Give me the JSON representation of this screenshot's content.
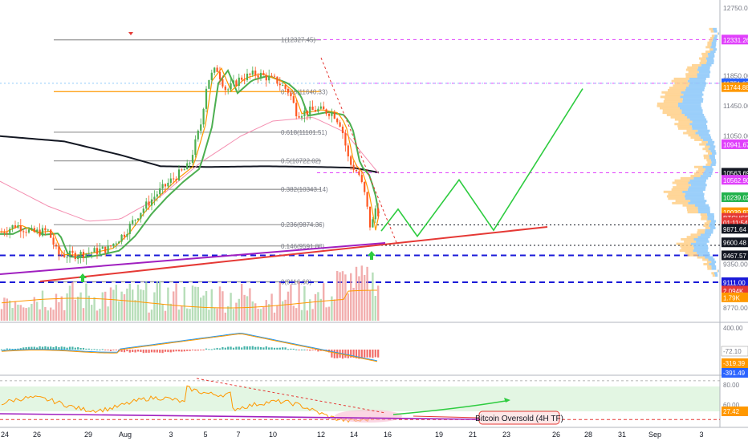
{
  "chart_data": {
    "type": "candlestick",
    "symbol_label": "BTCUSD",
    "price_axis": {
      "range": [
        8600,
        12780
      ],
      "ticks": [
        "12750.00",
        "12331.26",
        "11850.00",
        "11751.07",
        "11744.88",
        "11450.00",
        "11050.00",
        "10941.67",
        "10563.69",
        "10562.90",
        "10239.02",
        "10039.97",
        "9964.96",
        "01:11:54",
        "9871.64",
        "9600.48",
        "9467.57",
        "9350.00",
        "9111.00",
        "2.094K",
        "1.79K",
        "8770.00"
      ]
    },
    "time_axis": {
      "labels": [
        "24",
        "26",
        "29",
        "Aug",
        "3",
        "5",
        "7",
        "10",
        "12",
        "14",
        "16",
        "19",
        "21",
        "23",
        "26",
        "28",
        "31",
        "Sep",
        "3"
      ]
    },
    "colors": {
      "up": "#26a69a",
      "down": "#ef5350",
      "wick_up": "#4caf50",
      "wick_down": "#ff5722",
      "ma_fast": "#ff9800",
      "ma_green": "#4caf50",
      "ma_pink": "#f48fb1",
      "ma_black": "#131722",
      "fib": "#9e9e9e",
      "fib_orange": "#ff9800",
      "projection": "#2ecc40",
      "trend_red": "#e53935",
      "trend_purple": "#a020c0",
      "level_blue": "#1a1ad8",
      "level_magenta": "#e040fb",
      "price_badge_magenta": "#e040fb",
      "price_badge_green": "#22b24c",
      "price_badge_black": "#131722",
      "price_badge_blue": "#2962ff",
      "price_badge_orange": "#ff9800",
      "price_badge_red": "#e53935"
    },
    "fib_levels": [
      {
        "label": "1(12327.45)",
        "price": 12327.45
      },
      {
        "label": "0.786(11640.33)",
        "price": 11640.33
      },
      {
        "label": "0.618(11101.51)",
        "price": 11101.51
      },
      {
        "label": "0.5(10722.02)",
        "price": 10722.02
      },
      {
        "label": "0.382(10343.14)",
        "price": 10343.14
      },
      {
        "label": "0.236(9874.36)",
        "price": 9874.36
      },
      {
        "label": "0.146(9591.80)",
        "price": 9591.8
      },
      {
        "label": "0(9116.60)",
        "price": 9116.6
      }
    ],
    "horizontal_levels": [
      {
        "price": 12331.26,
        "style": "magenta-dash"
      },
      {
        "price": 11751.07,
        "style": "magenta-dash"
      },
      {
        "price": 10563.69,
        "style": "magenta-dash"
      },
      {
        "price": 9871.64,
        "style": "black-dash"
      },
      {
        "price": 9600.48,
        "style": "black-dash"
      },
      {
        "price": 9467.57,
        "style": "blue-dash"
      },
      {
        "price": 9111.0,
        "style": "blue-dash"
      }
    ],
    "price_badges": [
      {
        "text": "12331.26",
        "price": 12331.26,
        "color": "#e040fb"
      },
      {
        "text": "11751.07",
        "price": 11751.07,
        "color": "#2962ff"
      },
      {
        "text": "11744.88",
        "price": 11700,
        "color": "#ff9800"
      },
      {
        "text": "10941.67",
        "price": 10941.67,
        "color": "#e040fb"
      },
      {
        "text": "10563.69",
        "price": 10563.69,
        "color": "#131722"
      },
      {
        "text": "10562.90",
        "price": 10470,
        "color": "#e040fb"
      },
      {
        "text": "10239.02",
        "price": 10239.02,
        "color": "#22b24c"
      },
      {
        "text": "10039.97",
        "price": 10039.97,
        "color": "#ff9800"
      },
      {
        "text": "BTCUSD",
        "price": 9964.96,
        "color": "#e53935"
      },
      {
        "text": "01:11:54",
        "price": 9905,
        "color": "#e53935"
      },
      {
        "text": "9871.64",
        "price": 9820,
        "color": "#131722"
      },
      {
        "text": "9600.48",
        "price": 9640,
        "color": "#131722"
      },
      {
        "text": "9467.57",
        "price": 9467.57,
        "color": "#131722"
      },
      {
        "text": "9111.00",
        "price": 9111.0,
        "color": "#1a1ad8"
      },
      {
        "text": "2.094K",
        "price": 9000,
        "color": "#e53935"
      },
      {
        "text": "1.79K",
        "price": 8910,
        "color": "#ff9800"
      }
    ],
    "projection_path_prices": [
      9790,
      10080,
      9720,
      10470,
      9800,
      11680
    ],
    "macd_panel": {
      "ticks": [
        "400.00",
        "0.00",
        "-72.10",
        "-319.39",
        "-391.49"
      ]
    },
    "rsi_panel": {
      "ticks": [
        "80.00",
        "60.00",
        "27.42"
      ],
      "annotation": "Bitcoin Oversold (4H TF)"
    }
  }
}
